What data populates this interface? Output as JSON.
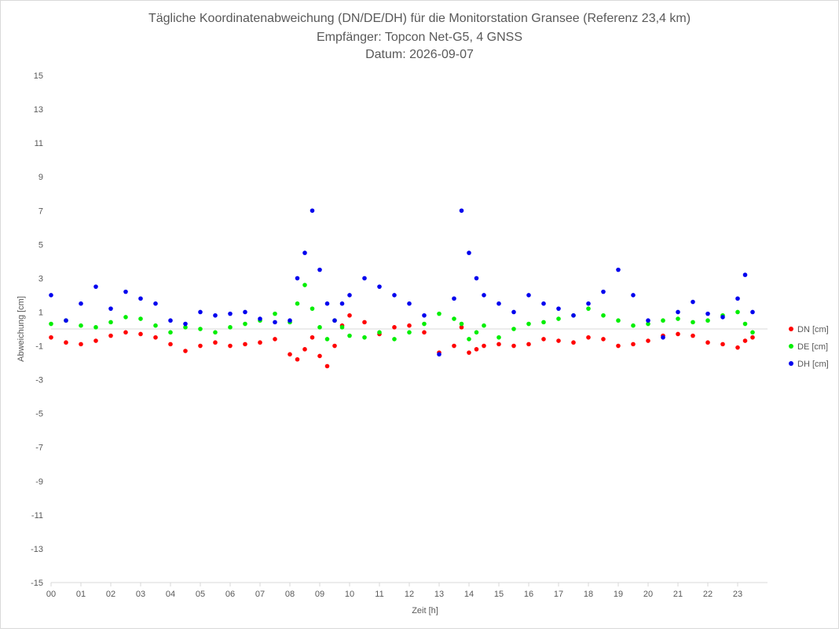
{
  "chart_data": {
    "type": "scatter",
    "title": "Tägliche Koordinatenabweichung (DN/DE/DH) für die Monitorstation Gransee (Referenz 23,4 km)",
    "subtitle": "Empfänger: Topcon Net-G5, 4 GNSS",
    "date_line": "Datum: 2026-09-07",
    "xlabel": "Zeit [h]",
    "ylabel": "Abweichung [cm]",
    "xlim": [
      0,
      24
    ],
    "ylim": [
      -15,
      15
    ],
    "x_ticks": [
      "00",
      "01",
      "02",
      "03",
      "04",
      "05",
      "06",
      "07",
      "08",
      "09",
      "10",
      "11",
      "12",
      "13",
      "14",
      "15",
      "16",
      "17",
      "18",
      "19",
      "20",
      "21",
      "22",
      "23"
    ],
    "y_ticks": [
      15,
      13,
      11,
      9,
      7,
      5,
      3,
      1,
      -1,
      -3,
      -5,
      -7,
      -9,
      -11,
      -13,
      -15
    ],
    "grid": false,
    "legend_position": "right",
    "x": [
      0.0,
      0.5,
      1.0,
      1.5,
      2.0,
      2.5,
      3.0,
      3.5,
      4.0,
      4.5,
      5.0,
      5.5,
      6.0,
      6.5,
      7.0,
      7.5,
      8.0,
      8.25,
      8.5,
      8.75,
      9.0,
      9.25,
      9.5,
      9.75,
      10.0,
      10.5,
      11.0,
      11.5,
      12.0,
      12.5,
      13.0,
      13.5,
      13.75,
      14.0,
      14.25,
      14.5,
      15.0,
      15.5,
      16.0,
      16.5,
      17.0,
      17.5,
      18.0,
      18.5,
      19.0,
      19.5,
      20.0,
      20.5,
      21.0,
      21.5,
      22.0,
      22.5,
      23.0,
      23.25,
      23.5
    ],
    "series": [
      {
        "name": "DN [cm]",
        "color": "#ff0000",
        "values": [
          -0.5,
          -0.8,
          -0.9,
          -0.7,
          -0.4,
          -0.2,
          -0.3,
          -0.5,
          -0.9,
          -1.3,
          -1.0,
          -0.8,
          -1.0,
          -0.9,
          -0.8,
          -0.6,
          -1.5,
          -1.8,
          -1.2,
          -0.5,
          -1.6,
          -2.2,
          -1.0,
          0.2,
          0.8,
          0.4,
          -0.3,
          0.1,
          0.2,
          -0.2,
          -1.4,
          -1.0,
          0.1,
          -1.4,
          -1.2,
          -1.0,
          -0.9,
          -1.0,
          -0.9,
          -0.6,
          -0.7,
          -0.8,
          -0.5,
          -0.6,
          -1.0,
          -0.9,
          -0.7,
          -0.4,
          -0.3,
          -0.4,
          -0.8,
          -0.9,
          -1.1,
          -0.7,
          -0.5
        ]
      },
      {
        "name": "DE [cm]",
        "color": "#00ee00",
        "values": [
          0.3,
          0.5,
          0.2,
          0.1,
          0.4,
          0.7,
          0.6,
          0.2,
          -0.2,
          0.1,
          0.0,
          -0.2,
          0.1,
          0.3,
          0.5,
          0.9,
          0.4,
          1.5,
          2.6,
          1.2,
          0.1,
          -0.6,
          0.5,
          0.1,
          -0.4,
          -0.5,
          -0.2,
          -0.6,
          -0.2,
          0.3,
          0.9,
          0.6,
          0.3,
          -0.6,
          -0.2,
          0.2,
          -0.5,
          0.0,
          0.3,
          0.4,
          0.6,
          0.8,
          1.2,
          0.8,
          0.5,
          0.2,
          0.3,
          0.5,
          0.6,
          0.4,
          0.5,
          0.8,
          1.0,
          0.3,
          -0.2
        ]
      },
      {
        "name": "DH [cm]",
        "color": "#0000ee",
        "values": [
          2.0,
          0.5,
          1.5,
          2.5,
          1.2,
          2.2,
          1.8,
          1.5,
          0.5,
          0.3,
          1.0,
          0.8,
          0.9,
          1.0,
          0.6,
          0.4,
          0.5,
          3.0,
          4.5,
          7.0,
          3.5,
          1.5,
          0.5,
          1.5,
          2.0,
          3.0,
          2.5,
          2.0,
          1.5,
          0.8,
          -1.5,
          1.8,
          7.0,
          4.5,
          3.0,
          2.0,
          1.5,
          1.0,
          2.0,
          1.5,
          1.2,
          0.8,
          1.5,
          2.2,
          3.5,
          2.0,
          0.5,
          -0.5,
          1.0,
          1.6,
          0.9,
          0.7,
          1.8,
          3.2,
          1.0
        ]
      }
    ]
  }
}
